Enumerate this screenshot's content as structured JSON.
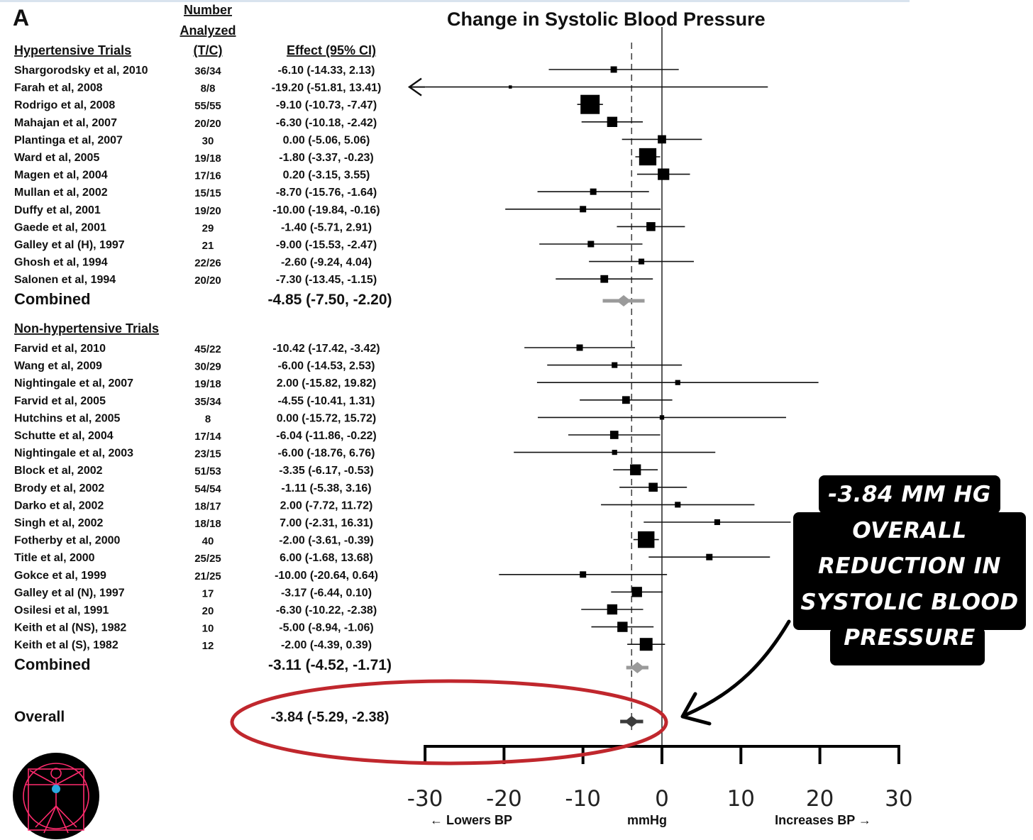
{
  "chart_data": {
    "type": "forest",
    "panel_label": "A",
    "title": "Change in Systolic Blood Pressure",
    "column_headers": {
      "number_analyzed_line1": "Number",
      "number_analyzed_line2": "Analyzed",
      "tc": "(T/C)",
      "effect": "Effect (95% CI)"
    },
    "groups": [
      {
        "name": "Hypertensive Trials",
        "studies": [
          {
            "study": "Shargorodsky et al, 2010",
            "n": "36/34",
            "effect_text": "-6.10 (-14.33, 2.13)",
            "est": -6.1,
            "lo": -14.33,
            "hi": 2.13,
            "weight": 1.0
          },
          {
            "study": "Farah et al, 2008",
            "n": "8/8",
            "effect_text": "-19.20 (-51.81, 13.41)",
            "est": -19.2,
            "lo": -51.81,
            "hi": 13.41,
            "weight": 0.5,
            "clipped_low": true
          },
          {
            "study": "Rodrigo et al, 2008",
            "n": "55/55",
            "effect_text": "-9.10 (-10.73, -7.47)",
            "est": -9.1,
            "lo": -10.73,
            "hi": -7.47,
            "weight": 3.0
          },
          {
            "study": "Mahajan et al, 2007",
            "n": "20/20",
            "effect_text": "-6.30 (-10.18, -2.42)",
            "est": -6.3,
            "lo": -10.18,
            "hi": -2.42,
            "weight": 1.6
          },
          {
            "study": "Plantinga et al, 2007",
            "n": "30",
            "effect_text": "0.00 (-5.06, 5.06)",
            "est": 0.0,
            "lo": -5.06,
            "hi": 5.06,
            "weight": 1.3
          },
          {
            "study": "Ward et al, 2005",
            "n": "19/18",
            "effect_text": "-1.80 (-3.37, -0.23)",
            "est": -1.8,
            "lo": -3.37,
            "hi": -0.23,
            "weight": 2.7
          },
          {
            "study": "Magen et al, 2004",
            "n": "17/16",
            "effect_text": "0.20 (-3.15, 3.55)",
            "est": 0.2,
            "lo": -3.15,
            "hi": 3.55,
            "weight": 1.8
          },
          {
            "study": "Mullan et al, 2002",
            "n": "15/15",
            "effect_text": "-8.70 (-15.76, -1.64)",
            "est": -8.7,
            "lo": -15.76,
            "hi": -1.64,
            "weight": 1.0
          },
          {
            "study": "Duffy et al, 2001",
            "n": "19/20",
            "effect_text": "-10.00 (-19.84, -0.16)",
            "est": -10.0,
            "lo": -19.84,
            "hi": -0.16,
            "weight": 1.0
          },
          {
            "study": "Gaede et al, 2001",
            "n": "29",
            "effect_text": "-1.40 (-5.71, 2.91)",
            "est": -1.4,
            "lo": -5.71,
            "hi": 2.91,
            "weight": 1.4
          },
          {
            "study": "Galley et al (H), 1997",
            "n": "21",
            "effect_text": "-9.00 (-15.53, -2.47)",
            "est": -9.0,
            "lo": -15.53,
            "hi": -2.47,
            "weight": 1.0
          },
          {
            "study": "Ghosh et al, 1994",
            "n": "22/26",
            "effect_text": "-2.60 (-9.24, 4.04)",
            "est": -2.6,
            "lo": -9.24,
            "hi": 4.04,
            "weight": 0.9
          },
          {
            "study": "Salonen et al, 1994",
            "n": "20/20",
            "effect_text": "-7.30 (-13.45, -1.15)",
            "est": -7.3,
            "lo": -13.45,
            "hi": -1.15,
            "weight": 1.2
          }
        ],
        "combined": {
          "label": "Combined",
          "effect_text": "-4.85 (-7.50, -2.20)",
          "est": -4.85,
          "lo": -7.5,
          "hi": -2.2,
          "color": "#9a9a9a"
        }
      },
      {
        "name": "Non-hypertensive Trials",
        "studies": [
          {
            "study": "Farvid et al, 2010",
            "n": "45/22",
            "effect_text": "-10.42 (-17.42, -3.42)",
            "est": -10.42,
            "lo": -17.42,
            "hi": -3.42,
            "weight": 1.0
          },
          {
            "study": "Wang et al, 2009",
            "n": "30/29",
            "effect_text": "-6.00 (-14.53, 2.53)",
            "est": -6.0,
            "lo": -14.53,
            "hi": 2.53,
            "weight": 0.9
          },
          {
            "study": "Nightingale et al, 2007",
            "n": "19/18",
            "effect_text": "2.00 (-15.82, 19.82)",
            "est": 2.0,
            "lo": -15.82,
            "hi": 19.82,
            "weight": 0.8
          },
          {
            "study": "Farvid et al, 2005",
            "n": "35/34",
            "effect_text": "-4.55 (-10.41, 1.31)",
            "est": -4.55,
            "lo": -10.41,
            "hi": 1.31,
            "weight": 1.2
          },
          {
            "study": "Hutchins et al, 2005",
            "n": "8",
            "effect_text": "0.00 (-15.72, 15.72)",
            "est": 0.0,
            "lo": -15.72,
            "hi": 15.72,
            "weight": 0.7
          },
          {
            "study": "Schutte et al, 2004",
            "n": "17/14",
            "effect_text": "-6.04 (-11.86, -0.22)",
            "est": -6.04,
            "lo": -11.86,
            "hi": -0.22,
            "weight": 1.3
          },
          {
            "study": "Nightingale et al, 2003",
            "n": "23/15",
            "effect_text": "-6.00 (-18.76, 6.76)",
            "est": -6.0,
            "lo": -18.76,
            "hi": 6.76,
            "weight": 0.8
          },
          {
            "study": "Block et al, 2002",
            "n": "51/53",
            "effect_text": "-3.35 (-6.17, -0.53)",
            "est": -3.35,
            "lo": -6.17,
            "hi": -0.53,
            "weight": 1.7
          },
          {
            "study": "Brody et al, 2002",
            "n": "54/54",
            "effect_text": "-1.11 (-5.38, 3.16)",
            "est": -1.11,
            "lo": -5.38,
            "hi": 3.16,
            "weight": 1.4
          },
          {
            "study": "Darko et al, 2002",
            "n": "18/17",
            "effect_text": "2.00 (-7.72, 11.72)",
            "est": 2.0,
            "lo": -7.72,
            "hi": 11.72,
            "weight": 0.9
          },
          {
            "study": "Singh et al, 2002",
            "n": "18/18",
            "effect_text": "7.00 (-2.31, 16.31)",
            "est": 7.0,
            "lo": -2.31,
            "hi": 16.31,
            "weight": 0.9
          },
          {
            "study": "Fotherby et al, 2000",
            "n": "40",
            "effect_text": "-2.00 (-3.61, -0.39)",
            "est": -2.0,
            "lo": -3.61,
            "hi": -0.39,
            "weight": 2.6
          },
          {
            "study": "Title et al, 2000",
            "n": "25/25",
            "effect_text": "6.00 (-1.68, 13.68)",
            "est": 6.0,
            "lo": -1.68,
            "hi": 13.68,
            "weight": 1.0
          },
          {
            "study": "Gokce et al, 1999",
            "n": "21/25",
            "effect_text": "-10.00 (-20.64, 0.64)",
            "est": -10.0,
            "lo": -20.64,
            "hi": 0.64,
            "weight": 1.0
          },
          {
            "study": "Galley et al (N), 1997",
            "n": "17",
            "effect_text": "-3.17 (-6.44, 0.10)",
            "est": -3.17,
            "lo": -6.44,
            "hi": 0.1,
            "weight": 1.6
          },
          {
            "study": "Osilesi et al, 1991",
            "n": "20",
            "effect_text": "-6.30 (-10.22, -2.38)",
            "est": -6.3,
            "lo": -10.22,
            "hi": -2.38,
            "weight": 1.6
          },
          {
            "study": "Keith et al (NS), 1982",
            "n": "10",
            "effect_text": "-5.00 (-8.94, -1.06)",
            "est": -5.0,
            "lo": -8.94,
            "hi": -1.06,
            "weight": 1.6
          },
          {
            "study": "Keith et al (S), 1982",
            "n": "12",
            "effect_text": "-2.00 (-4.39, 0.39)",
            "est": -2.0,
            "lo": -4.39,
            "hi": 0.39,
            "weight": 2.0
          }
        ],
        "combined": {
          "label": "Combined",
          "effect_text": "-3.11 (-4.52, -1.71)",
          "est": -3.11,
          "lo": -4.52,
          "hi": -1.71,
          "color": "#9a9a9a"
        }
      }
    ],
    "overall": {
      "label": "Overall",
      "effect_text": "-3.84 (-5.29, -2.38)",
      "est": -3.84,
      "lo": -5.29,
      "hi": -2.38,
      "color": "#3c3c3c"
    },
    "reference_line": -3.84,
    "null_line": 0,
    "xlim": [
      -30,
      30
    ],
    "xticks": [
      -30,
      -20,
      -10,
      0,
      10,
      20,
      30
    ],
    "xlabel": "mmHg",
    "x_left_note": "← Lowers BP",
    "x_right_note": "Increases BP →",
    "highlight_color": "#c0272d"
  },
  "callout": {
    "text": "-3.84 MM HG\nOVERALL\nREDUCTION IN\nSYSTOLIC BLOOD\nPRESSURE"
  },
  "logo": {
    "name": "vitruvian-figure-logo",
    "color": "#ff2a6d",
    "accent": "#2aa8e0"
  }
}
